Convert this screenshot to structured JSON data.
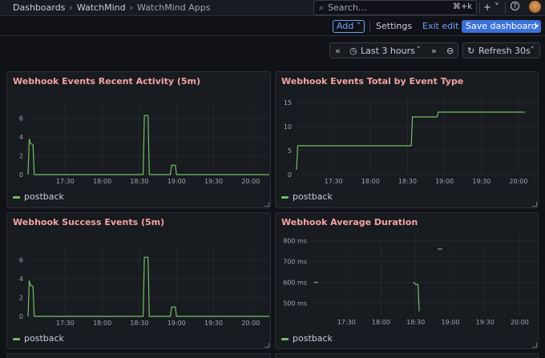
{
  "breadcrumb": {
    "items": [
      "Dashboards",
      "WatchMind",
      "WatchMind Apps"
    ],
    "sep": "›"
  },
  "search": {
    "placeholder": "Search...",
    "shortcut": "⌘+k"
  },
  "topbar": {
    "plus": "+ ˅"
  },
  "toolbar": {
    "add_label": "Add ˅",
    "settings_label": "Settings",
    "exit_label": "Exit edit",
    "save_label": "Save dashboard"
  },
  "time_picker": {
    "back": "«",
    "range_label": "Last 3 hours",
    "forward": "»",
    "caret": "˅",
    "zoom": "⊖"
  },
  "refresh": {
    "label": "Refresh 30s",
    "caret": "˅"
  },
  "colors": {
    "series": "#73bf69",
    "title": "#f1a3a3"
  },
  "panels": [
    {
      "title": "Webhook Events Recent Activity (5m)",
      "legend": "postback"
    },
    {
      "title": "Webhook Events Total by Event Type",
      "legend": "postback"
    },
    {
      "title": "Webhook Success Events (5m)",
      "legend": "postback"
    },
    {
      "title": "Webhook Average Duration",
      "legend": "postback"
    }
  ],
  "chart_data": [
    {
      "type": "line",
      "title": "Webhook Events Recent Activity (5m)",
      "x_ticks": [
        "17:30",
        "18:00",
        "18:30",
        "19:00",
        "19:30",
        "20:00"
      ],
      "y_ticks": [
        "0",
        "2",
        "4",
        "6"
      ],
      "ylim": [
        0,
        7
      ],
      "xlim_minutes": [
        1020,
        1215
      ],
      "series": [
        {
          "name": "postback",
          "points": [
            [
              1020,
              0
            ],
            [
              1021,
              3.8
            ],
            [
              1022,
              3.3
            ],
            [
              1024,
              3.2
            ],
            [
              1025,
              0
            ],
            [
              1113,
              0
            ],
            [
              1114,
              6.3
            ],
            [
              1117,
              6.3
            ],
            [
              1118,
              0
            ],
            [
              1135,
              0
            ],
            [
              1136,
              1
            ],
            [
              1139,
              1
            ],
            [
              1140,
              0
            ],
            [
              1215,
              0
            ]
          ]
        }
      ]
    },
    {
      "type": "line",
      "title": "Webhook Events Total by Event Type",
      "x_ticks": [
        "17:30",
        "18:00",
        "18:30",
        "19:00",
        "19:30",
        "20:00"
      ],
      "y_ticks": [
        "0",
        "5",
        "10",
        "15"
      ],
      "ylim": [
        0,
        16
      ],
      "xlim_minutes": [
        1020,
        1215
      ],
      "series": [
        {
          "name": "postback",
          "points": [
            [
              1020,
              1
            ],
            [
              1021,
              6
            ],
            [
              1113,
              6
            ],
            [
              1114,
              12
            ],
            [
              1134,
              12
            ],
            [
              1135,
              13
            ],
            [
              1205,
              13
            ]
          ]
        }
      ]
    },
    {
      "type": "line",
      "title": "Webhook Success Events (5m)",
      "x_ticks": [
        "17:30",
        "18:00",
        "18:30",
        "19:00",
        "19:30",
        "20:00"
      ],
      "y_ticks": [
        "0",
        "2",
        "4",
        "6"
      ],
      "ylim": [
        0,
        7
      ],
      "xlim_minutes": [
        1020,
        1215
      ],
      "series": [
        {
          "name": "postback",
          "points": [
            [
              1020,
              0
            ],
            [
              1021,
              3.8
            ],
            [
              1022,
              3.3
            ],
            [
              1024,
              3.2
            ],
            [
              1025,
              0
            ],
            [
              1113,
              0
            ],
            [
              1114,
              6.3
            ],
            [
              1117,
              6.3
            ],
            [
              1118,
              0
            ],
            [
              1135,
              0
            ],
            [
              1136,
              1
            ],
            [
              1139,
              1
            ],
            [
              1140,
              0
            ],
            [
              1215,
              0
            ]
          ]
        }
      ]
    },
    {
      "type": "line",
      "title": "Webhook Average Duration",
      "x_ticks": [
        "17:30",
        "18:00",
        "18:30",
        "19:00",
        "19:30",
        "20:00"
      ],
      "y_ticks": [
        "500 ms",
        "600 ms",
        "700 ms",
        "800 ms"
      ],
      "ylim": [
        440,
        810
      ],
      "xlim_minutes": [
        1020,
        1215
      ],
      "segments": [
        [
          [
            1022,
            597
          ],
          [
            1023,
            600
          ],
          [
            1025,
            600
          ]
        ],
        [
          [
            1108,
            600
          ],
          [
            1110,
            590
          ],
          [
            1112,
            590
          ],
          [
            1113,
            460
          ]
        ],
        [
          [
            1129,
            760
          ],
          [
            1133,
            760
          ]
        ]
      ]
    }
  ]
}
